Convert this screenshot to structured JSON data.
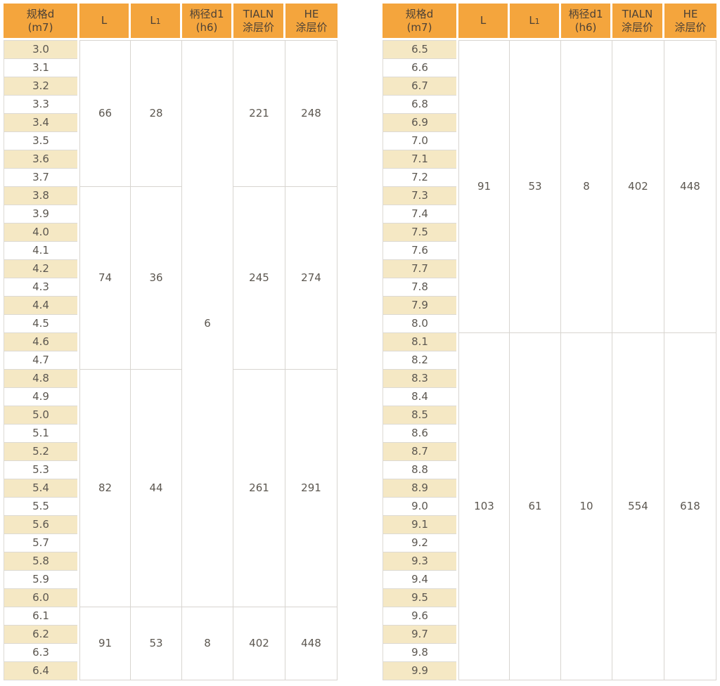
{
  "colors": {
    "header_bg": "#F4A53D",
    "row_alt_bg": "#F5E8C4",
    "grid_line": "#D8D5D0",
    "header_text": "#4C4136",
    "body_text": "#5C5750",
    "background": "#FFFFFF"
  },
  "columns": [
    {
      "key": "spec",
      "line1": "规格d",
      "line2": "(m7)"
    },
    {
      "key": "L",
      "line1": "L"
    },
    {
      "key": "L1",
      "line1": "L",
      "sub": "1"
    },
    {
      "key": "shank",
      "line1": "柄径d1",
      "line2": "(h6)"
    },
    {
      "key": "tialn",
      "line1": "TIALN",
      "line2": "涂层价"
    },
    {
      "key": "he",
      "line1": "HE",
      "line2": "涂层价"
    }
  ],
  "tables": [
    {
      "id": "left",
      "spec": [
        "3.0",
        "3.1",
        "3.2",
        "3.3",
        "3.4",
        "3.5",
        "3.6",
        "3.7",
        "3.8",
        "3.9",
        "4.0",
        "4.1",
        "4.2",
        "4.3",
        "4.4",
        "4.5",
        "4.6",
        "4.7",
        "4.8",
        "4.9",
        "5.0",
        "5.1",
        "5.2",
        "5.3",
        "5.4",
        "5.5",
        "5.6",
        "5.7",
        "5.8",
        "5.9",
        "6.0",
        "6.1",
        "6.2",
        "6.3",
        "6.4"
      ],
      "groups": [
        {
          "rows": 8,
          "L": "66",
          "L1": "28",
          "tialn": "221",
          "he": "248"
        },
        {
          "rows": 10,
          "L": "74",
          "L1": "36",
          "tialn": "245",
          "he": "274"
        },
        {
          "rows": 13,
          "L": "82",
          "L1": "44",
          "tialn": "261",
          "he": "291"
        },
        {
          "rows": 4,
          "L": "91",
          "L1": "53",
          "tialn": "402",
          "he": "448"
        }
      ],
      "shank_groups": [
        {
          "rows": 31,
          "value": "6"
        },
        {
          "rows": 4,
          "value": "8"
        }
      ]
    },
    {
      "id": "right",
      "spec": [
        "6.5",
        "6.6",
        "6.7",
        "6.8",
        "6.9",
        "7.0",
        "7.1",
        "7.2",
        "7.3",
        "7.4",
        "7.5",
        "7.6",
        "7.7",
        "7.8",
        "7.9",
        "8.0",
        "8.1",
        "8.2",
        "8.3",
        "8.4",
        "8.5",
        "8.6",
        "8.7",
        "8.8",
        "8.9",
        "9.0",
        "9.1",
        "9.2",
        "9.3",
        "9.4",
        "9.5",
        "9.6",
        "9.7",
        "9.8",
        "9.9"
      ],
      "groups": [
        {
          "rows": 16,
          "L": "91",
          "L1": "53",
          "tialn": "402",
          "he": "448"
        },
        {
          "rows": 19,
          "L": "103",
          "L1": "61",
          "tialn": "554",
          "he": "618"
        }
      ],
      "shank_groups": [
        {
          "rows": 16,
          "value": "8"
        },
        {
          "rows": 19,
          "value": "10"
        }
      ]
    }
  ]
}
